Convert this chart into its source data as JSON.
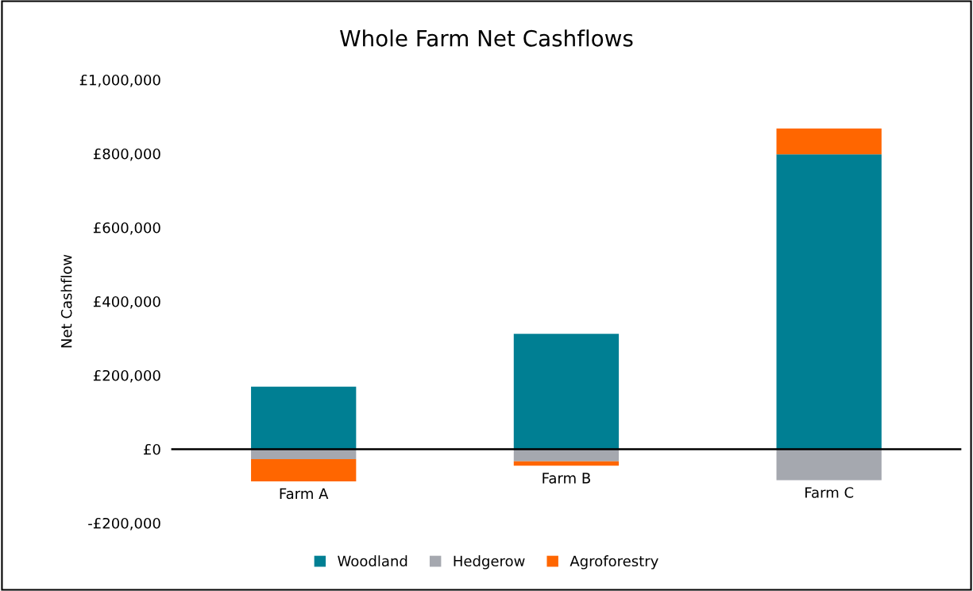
{
  "chart_data": {
    "type": "bar",
    "title": "Whole Farm Net Cashflows",
    "ylabel": "Net Cashflow",
    "categories": [
      "Farm A",
      "Farm B",
      "Farm C"
    ],
    "stacked": true,
    "series": [
      {
        "name": "Woodland",
        "color": "#007f93",
        "values": [
          169000,
          312000,
          798000
        ]
      },
      {
        "name": "Hedgerow",
        "color": "#a5a8af",
        "values": [
          -27000,
          -33000,
          -84000
        ]
      },
      {
        "name": "Agroforestry",
        "color": "#ff6600",
        "values": [
          -60000,
          -12000,
          70000
        ]
      }
    ],
    "ylim": [
      -200000,
      1000000
    ],
    "yticks": [
      {
        "value": -200000,
        "label": "-£200,000"
      },
      {
        "value": 0,
        "label": "£0"
      },
      {
        "value": 200000,
        "label": "£200,000"
      },
      {
        "value": 400000,
        "label": "£400,000"
      },
      {
        "value": 600000,
        "label": "£600,000"
      },
      {
        "value": 800000,
        "label": "£800,000"
      },
      {
        "value": 1000000,
        "label": "£1,000,000"
      }
    ],
    "legend": "bottom"
  }
}
